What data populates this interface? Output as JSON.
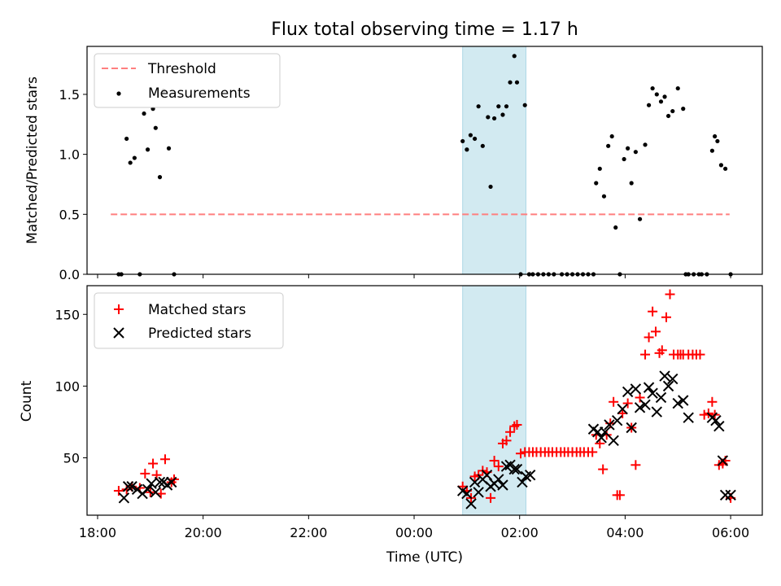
{
  "chart_data": [
    {
      "type": "scatter",
      "title": "Flux total observing time = 1.17 h",
      "xlabel": "",
      "ylabel": "Matched/Predicted stars",
      "x_unit": "hours relative to 00:00 UTC",
      "xlim": [
        -6.2,
        6.6
      ],
      "ylim": [
        0,
        1.9
      ],
      "yticks": [
        0.0,
        0.5,
        1.0,
        1.5
      ],
      "ytick_labels": [
        "0.0",
        "0.5",
        "1.0",
        "1.5"
      ],
      "xticks": [
        -6,
        -4,
        -2,
        0,
        2,
        4,
        6
      ],
      "show_xtick_labels": false,
      "grid": false,
      "legend_position": "upper-left",
      "shaded_interval": [
        0.92,
        2.12
      ],
      "shade_color": "#add8e6",
      "series": [
        {
          "name": "Threshold",
          "style": "dashed-line",
          "color": "#ff7f7f",
          "x": [
            -5.75,
            5.98
          ],
          "y": [
            0.5,
            0.5
          ]
        },
        {
          "name": "Measurements",
          "style": "dot",
          "color": "#000000",
          "x": [
            -5.6,
            -5.55,
            -5.45,
            -5.38,
            -5.3,
            -5.2,
            -5.12,
            -5.05,
            -4.95,
            -4.9,
            -4.82,
            -4.75,
            -4.65,
            -4.55,
            0.92,
            1.0,
            1.07,
            1.15,
            1.22,
            1.3,
            1.4,
            1.45,
            1.52,
            1.6,
            1.68,
            1.75,
            1.82,
            1.9,
            1.95,
            2.02,
            2.1,
            2.18,
            2.25,
            2.35,
            2.45,
            2.55,
            2.65,
            2.8,
            2.9,
            3.0,
            3.1,
            3.2,
            3.3,
            3.4,
            3.45,
            3.52,
            3.6,
            3.68,
            3.75,
            3.82,
            3.9,
            3.98,
            4.05,
            4.12,
            4.2,
            4.28,
            4.38,
            4.45,
            4.52,
            4.6,
            4.68,
            4.75,
            4.82,
            4.9,
            5.0,
            5.1,
            5.15,
            5.2,
            5.3,
            5.4,
            5.45,
            5.55,
            5.65,
            5.7,
            5.75,
            5.82,
            5.9,
            6.0
          ],
          "y": [
            0.0,
            0.0,
            1.13,
            0.93,
            0.97,
            0.0,
            1.34,
            1.04,
            1.38,
            1.22,
            0.81,
            1.53,
            1.05,
            0.0,
            1.11,
            1.04,
            1.16,
            1.13,
            1.4,
            1.07,
            1.31,
            0.73,
            1.3,
            1.4,
            1.33,
            1.4,
            1.6,
            1.82,
            1.6,
            0.0,
            1.41,
            0.0,
            0.0,
            0.0,
            0.0,
            0.0,
            0.0,
            0.0,
            0.0,
            0.0,
            0.0,
            0.0,
            0.0,
            0.0,
            0.76,
            0.88,
            0.65,
            1.07,
            1.15,
            0.39,
            0.0,
            0.96,
            1.05,
            0.76,
            1.02,
            0.46,
            1.08,
            1.41,
            1.55,
            1.5,
            1.44,
            1.48,
            1.32,
            1.36,
            1.55,
            1.38,
            0.0,
            0.0,
            0.0,
            0.0,
            0.0,
            0.0,
            1.03,
            1.15,
            1.11,
            0.91,
            0.88,
            0.0
          ]
        }
      ]
    },
    {
      "type": "scatter",
      "title": "",
      "xlabel": "Time (UTC)",
      "ylabel": "Count",
      "x_unit": "hours relative to 00:00 UTC",
      "xlim": [
        -6.2,
        6.6
      ],
      "ylim": [
        10,
        170
      ],
      "yticks": [
        50,
        100,
        150
      ],
      "ytick_labels": [
        "50",
        "100",
        "150"
      ],
      "xticks": [
        -6,
        -4,
        -2,
        0,
        2,
        4,
        6
      ],
      "xtick_labels": [
        "18:00",
        "20:00",
        "22:00",
        "00:00",
        "02:00",
        "04:00",
        "06:00"
      ],
      "grid": false,
      "legend_position": "upper-left",
      "shaded_interval": [
        0.92,
        2.12
      ],
      "shade_color": "#add8e6",
      "series": [
        {
          "name": "Matched stars",
          "marker": "plus",
          "color": "#ff0000",
          "x": [
            -5.6,
            -5.45,
            -5.35,
            -5.2,
            -5.1,
            -5.0,
            -4.95,
            -4.88,
            -4.8,
            -4.72,
            -4.6,
            -4.55,
            0.92,
            1.0,
            1.08,
            1.15,
            1.22,
            1.3,
            1.38,
            1.45,
            1.52,
            1.6,
            1.68,
            1.75,
            1.82,
            1.9,
            1.95,
            2.02,
            2.1,
            2.18,
            2.25,
            2.32,
            2.4,
            2.48,
            2.55,
            2.62,
            2.7,
            2.78,
            2.85,
            2.92,
            3.0,
            3.08,
            3.15,
            3.22,
            3.3,
            3.38,
            3.45,
            3.52,
            3.58,
            3.65,
            3.72,
            3.78,
            3.85,
            3.9,
            3.95,
            4.05,
            4.12,
            4.2,
            4.28,
            4.38,
            4.45,
            4.52,
            4.58,
            4.65,
            4.7,
            4.78,
            4.85,
            4.92,
            5.0,
            5.05,
            5.1,
            5.2,
            5.28,
            5.35,
            5.42,
            5.5,
            5.58,
            5.65,
            5.7,
            5.78,
            5.85,
            5.9,
            6.0
          ],
          "y": [
            27,
            28,
            30,
            29,
            39,
            26,
            46,
            38,
            25,
            49,
            33,
            35,
            30,
            27,
            22,
            37,
            38,
            41,
            40,
            22,
            48,
            44,
            60,
            62,
            68,
            72,
            73,
            53,
            54,
            54,
            54,
            54,
            54,
            54,
            54,
            54,
            54,
            54,
            54,
            54,
            54,
            54,
            54,
            54,
            54,
            54,
            66,
            60,
            42,
            66,
            74,
            89,
            24,
            24,
            81,
            88,
            71,
            45,
            92,
            122,
            134,
            152,
            138,
            123,
            125,
            148,
            164,
            122,
            122,
            122,
            122,
            122,
            122,
            122,
            122,
            80,
            81,
            89,
            80,
            45,
            46,
            48,
            22
          ]
        },
        {
          "name": "Predicted stars",
          "marker": "x",
          "color": "#000000",
          "x": [
            -5.5,
            -5.42,
            -5.35,
            -5.25,
            -5.15,
            -5.05,
            -4.98,
            -4.9,
            -4.82,
            -4.75,
            -4.68,
            -4.6,
            0.92,
            1.0,
            1.08,
            1.15,
            1.22,
            1.3,
            1.38,
            1.45,
            1.52,
            1.6,
            1.68,
            1.75,
            1.82,
            1.9,
            1.95,
            2.05,
            2.12,
            2.2,
            3.4,
            3.48,
            3.55,
            3.62,
            3.7,
            3.78,
            3.85,
            3.95,
            4.05,
            4.12,
            4.2,
            4.28,
            4.38,
            4.45,
            4.52,
            4.6,
            4.68,
            4.75,
            4.82,
            4.9,
            5.0,
            5.1,
            5.2,
            5.65,
            5.72,
            5.78,
            5.85,
            5.9,
            6.0
          ],
          "y": [
            22,
            30,
            30,
            28,
            25,
            28,
            32,
            26,
            33,
            33,
            31,
            33,
            27,
            25,
            18,
            33,
            26,
            35,
            38,
            30,
            32,
            35,
            31,
            44,
            45,
            42,
            42,
            33,
            37,
            38,
            70,
            68,
            64,
            68,
            73,
            62,
            76,
            84,
            96,
            71,
            98,
            85,
            87,
            99,
            95,
            82,
            92,
            107,
            100,
            105,
            88,
            90,
            78,
            78,
            76,
            72,
            48,
            24,
            24
          ]
        }
      ]
    }
  ]
}
